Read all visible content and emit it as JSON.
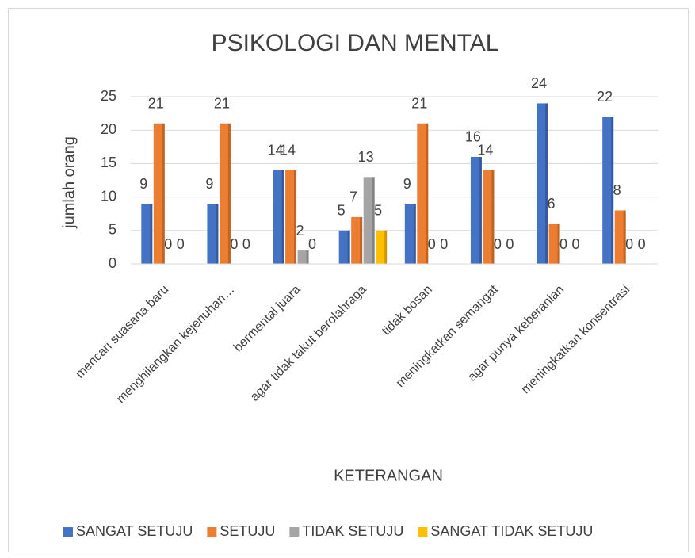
{
  "chart_data": {
    "type": "bar",
    "title": "PSIKOLOGI DAN MENTAL",
    "y_label": "jumlah orang",
    "x_label": "KETERANGAN",
    "categories": [
      "mencari suasana baru",
      "menghilangkan kejenuhan…",
      "bermental juara",
      "agar tidak takut berolahraga",
      "tidak bosan",
      "meningkatkan semangat",
      "agar punya keberanian",
      "meningkatkan konsentrasi"
    ],
    "series": [
      {
        "name": "SANGAT SETUJU",
        "color": "#4472c4",
        "values": [
          9,
          9,
          14,
          5,
          9,
          16,
          24,
          22
        ]
      },
      {
        "name": "SETUJU",
        "color": "#ed7d31",
        "values": [
          21,
          21,
          14,
          7,
          21,
          14,
          6,
          8
        ]
      },
      {
        "name": "TIDAK SETUJU",
        "color": "#a5a5a5",
        "values": [
          0,
          0,
          2,
          13,
          0,
          0,
          0,
          0
        ]
      },
      {
        "name": "SANGAT TIDAK SETUJU",
        "color": "#ffc000",
        "values": [
          0,
          0,
          0,
          5,
          0,
          0,
          0,
          0
        ]
      }
    ],
    "ylim": [
      0,
      25
    ],
    "yticks": [
      0,
      5,
      10,
      15,
      20,
      25
    ],
    "grid": true,
    "legend": "bottom"
  }
}
